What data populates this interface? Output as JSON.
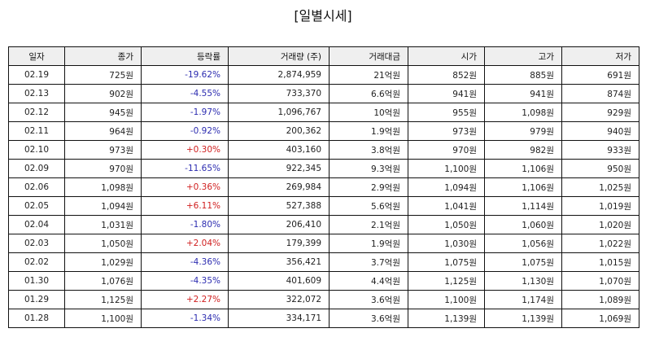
{
  "title": "[일별시세]",
  "columns": [
    "일자",
    "종가",
    "등락률",
    "거래량 (주)",
    "거래대금",
    "시가",
    "고가",
    "저가"
  ],
  "colors": {
    "up": "#d02020",
    "down": "#2c2cb0"
  },
  "rows": [
    {
      "date": "02.19",
      "close": "725원",
      "change": "-19.62%",
      "volume": "2,874,959",
      "amount": "21억원",
      "open": "852원",
      "high": "885원",
      "low": "691원"
    },
    {
      "date": "02.13",
      "close": "902원",
      "change": "-4.55%",
      "volume": "733,370",
      "amount": "6.6억원",
      "open": "941원",
      "high": "941원",
      "low": "874원"
    },
    {
      "date": "02.12",
      "close": "945원",
      "change": "-1.97%",
      "volume": "1,096,767",
      "amount": "10억원",
      "open": "955원",
      "high": "1,098원",
      "low": "929원"
    },
    {
      "date": "02.11",
      "close": "964원",
      "change": "-0.92%",
      "volume": "200,362",
      "amount": "1.9억원",
      "open": "973원",
      "high": "979원",
      "low": "940원"
    },
    {
      "date": "02.10",
      "close": "973원",
      "change": "+0.30%",
      "volume": "403,160",
      "amount": "3.8억원",
      "open": "970원",
      "high": "982원",
      "low": "933원"
    },
    {
      "date": "02.09",
      "close": "970원",
      "change": "-11.65%",
      "volume": "922,345",
      "amount": "9.3억원",
      "open": "1,100원",
      "high": "1,106원",
      "low": "950원"
    },
    {
      "date": "02.06",
      "close": "1,098원",
      "change": "+0.36%",
      "volume": "269,984",
      "amount": "2.9억원",
      "open": "1,094원",
      "high": "1,106원",
      "low": "1,025원"
    },
    {
      "date": "02.05",
      "close": "1,094원",
      "change": "+6.11%",
      "volume": "527,388",
      "amount": "5.6억원",
      "open": "1,041원",
      "high": "1,114원",
      "low": "1,019원"
    },
    {
      "date": "02.04",
      "close": "1,031원",
      "change": "-1.80%",
      "volume": "206,410",
      "amount": "2.1억원",
      "open": "1,050원",
      "high": "1,060원",
      "low": "1,020원"
    },
    {
      "date": "02.03",
      "close": "1,050원",
      "change": "+2.04%",
      "volume": "179,399",
      "amount": "1.9억원",
      "open": "1,030원",
      "high": "1,056원",
      "low": "1,022원"
    },
    {
      "date": "02.02",
      "close": "1,029원",
      "change": "-4.36%",
      "volume": "356,421",
      "amount": "3.7억원",
      "open": "1,075원",
      "high": "1,075원",
      "low": "1,015원"
    },
    {
      "date": "01.30",
      "close": "1,076원",
      "change": "-4.35%",
      "volume": "401,609",
      "amount": "4.4억원",
      "open": "1,125원",
      "high": "1,130원",
      "low": "1,070원"
    },
    {
      "date": "01.29",
      "close": "1,125원",
      "change": "+2.27%",
      "volume": "322,072",
      "amount": "3.6억원",
      "open": "1,100원",
      "high": "1,174원",
      "low": "1,089원"
    },
    {
      "date": "01.28",
      "close": "1,100원",
      "change": "-1.34%",
      "volume": "334,171",
      "amount": "3.6억원",
      "open": "1,139원",
      "high": "1,139원",
      "low": "1,069원"
    }
  ]
}
